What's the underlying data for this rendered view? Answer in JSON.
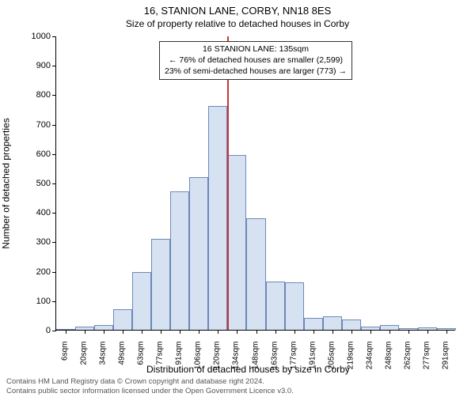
{
  "title": "16, STANION LANE, CORBY, NN18 8ES",
  "subtitle": "Size of property relative to detached houses in Corby",
  "chart": {
    "type": "histogram",
    "categories": [
      "6sqm",
      "20sqm",
      "34sqm",
      "49sqm",
      "63sqm",
      "77sqm",
      "91sqm",
      "106sqm",
      "120sqm",
      "134sqm",
      "148sqm",
      "163sqm",
      "177sqm",
      "191sqm",
      "205sqm",
      "219sqm",
      "234sqm",
      "248sqm",
      "262sqm",
      "277sqm",
      "291sqm"
    ],
    "values": [
      0,
      10,
      15,
      70,
      195,
      310,
      470,
      520,
      760,
      595,
      380,
      165,
      160,
      40,
      45,
      35,
      10,
      15,
      5,
      8,
      5
    ],
    "bar_fill": "#d6e2f2",
    "bar_stroke": "#6b89b8",
    "bar_stroke_width": 1,
    "background": "#ffffff",
    "ylim": [
      0,
      1000
    ],
    "ytick_step": 100,
    "ylabel": "Number of detached properties",
    "xlabel": "Distribution of detached houses by size in Corby",
    "label_fontsize": 12,
    "tick_fontsize": 10,
    "reference_line": {
      "bin_index": 9,
      "color": "#cc3333",
      "width": 2
    },
    "annotation": {
      "lines": [
        "16 STANION LANE: 135sqm",
        "← 76% of detached houses are smaller (2,599)",
        "23% of semi-detached houses are larger (773) →"
      ]
    }
  },
  "footer": {
    "line1": "Contains HM Land Registry data © Crown copyright and database right 2024.",
    "line2": "Contains public sector information licensed under the Open Government Licence v3.0."
  }
}
